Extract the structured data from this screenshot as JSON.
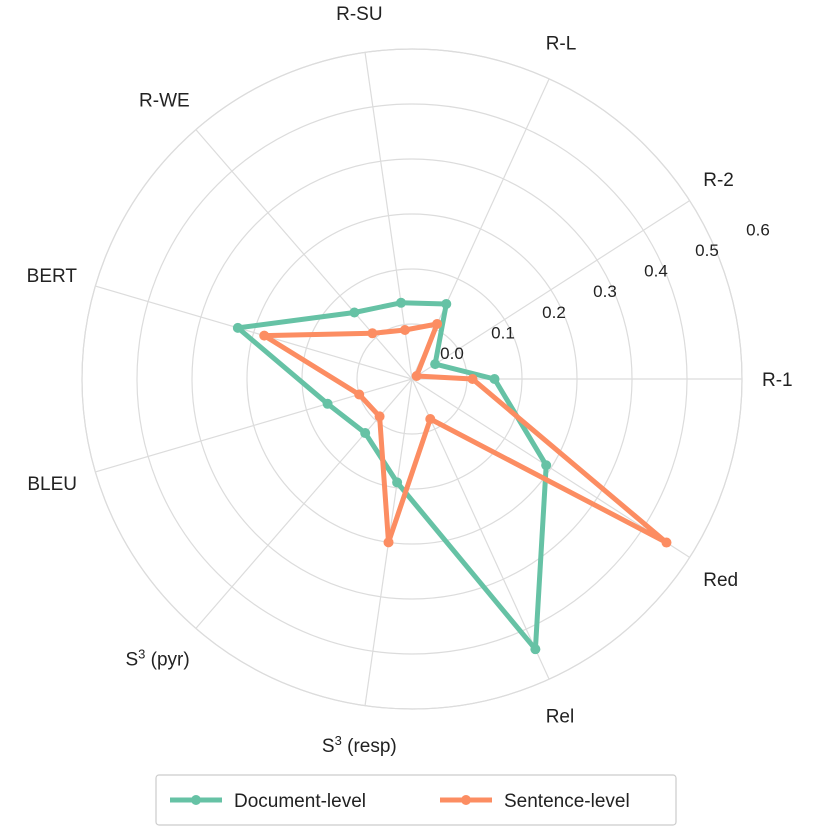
{
  "chart_data": {
    "type": "radar",
    "axes": [
      "R-1",
      "R-2",
      "R-L",
      "R-SU",
      "R-WE",
      "BERT",
      "BLEU",
      "S3 (pyr)",
      "S3 (resp)",
      "Rel",
      "Red"
    ],
    "axis_labels": [
      {
        "base": "R-1",
        "sup": "",
        "suffix": ""
      },
      {
        "base": "R-2",
        "sup": "",
        "suffix": ""
      },
      {
        "base": "R-L",
        "sup": "",
        "suffix": ""
      },
      {
        "base": "R-SU",
        "sup": "",
        "suffix": ""
      },
      {
        "base": "R-WE",
        "sup": "",
        "suffix": ""
      },
      {
        "base": "BERT",
        "sup": "",
        "suffix": ""
      },
      {
        "base": "BLEU",
        "sup": "",
        "suffix": ""
      },
      {
        "base": "S",
        "sup": "3",
        "suffix": " (pyr)"
      },
      {
        "base": "S",
        "sup": "3",
        "suffix": " (resp)"
      },
      {
        "base": "Rel",
        "sup": "",
        "suffix": ""
      },
      {
        "base": "Red",
        "sup": "",
        "suffix": ""
      }
    ],
    "ticks": [
      "0.0",
      "0.1",
      "0.2",
      "0.3",
      "0.4",
      "0.5",
      "0.6"
    ],
    "rlim": [
      0,
      0.6
    ],
    "grid": true,
    "legend_position": "bottom",
    "series": [
      {
        "name": "Document-level",
        "color": "#66c2a5",
        "values": [
          0.15,
          0.05,
          0.15,
          0.14,
          0.16,
          0.33,
          0.16,
          0.13,
          0.19,
          0.54,
          0.29
        ]
      },
      {
        "name": "Sentence-level",
        "color": "#fc8d62",
        "values": [
          0.11,
          0.01,
          0.11,
          0.09,
          0.11,
          0.28,
          0.1,
          0.09,
          0.3,
          0.08,
          0.55
        ]
      }
    ]
  }
}
